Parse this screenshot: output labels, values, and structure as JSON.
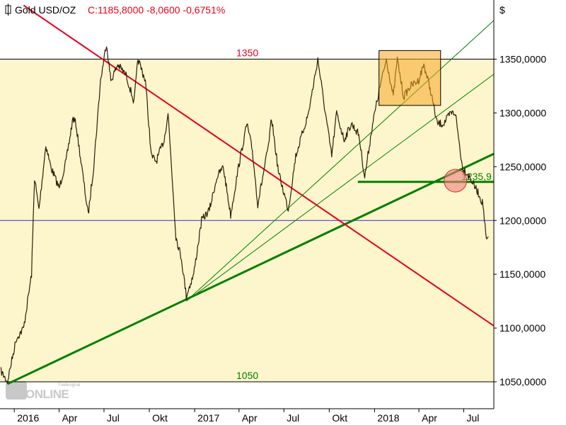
{
  "header": {
    "instrument": "Gold USD/OZ",
    "quote": "C:1185,8000 -8,0600 -0,6751%",
    "quote_color": "#e8001c"
  },
  "watermark": {
    "text": "ONLINE",
    "subtext": "Tradesignal"
  },
  "colors": {
    "background": "#ffffff",
    "band_fill": "#fdf6cc",
    "price_line": "#2b1d08",
    "support_line": "#008000",
    "resistance_line": "#e8001c",
    "horizontal_line": "#3333aa",
    "highlight_box": "#f5a623",
    "highlight_circle": "#f08080"
  },
  "chart_data": {
    "type": "line",
    "title": "Gold USD/OZ",
    "ylabel": "$",
    "y_range": [
      1025,
      1405
    ],
    "x_range": [
      "2015-12-03",
      "2018-08-31"
    ],
    "x_ticks": [
      "2016",
      "Apr",
      "Jul",
      "Okt",
      "2017",
      "Apr",
      "Jul",
      "Okt",
      "2018",
      "Apr",
      "Jul"
    ],
    "x_tick_dates": [
      "2016-01-01",
      "2016-04-01",
      "2016-07-01",
      "2016-10-01",
      "2017-01-01",
      "2017-04-01",
      "2017-07-01",
      "2017-10-01",
      "2018-01-01",
      "2018-04-01",
      "2018-07-01"
    ],
    "y_ticks": [
      1050,
      1100,
      1150,
      1200,
      1250,
      1300,
      1350
    ],
    "y_tick_labels": [
      "1050,0000",
      "1100,0000",
      "1150,0000",
      "1200,0000",
      "1250,0000",
      "1300,0000",
      "1350,0000"
    ],
    "grid": false,
    "series": [
      {
        "x": [
          "2015-12-05",
          "2015-12-18",
          "2016-01-05",
          "2016-01-20",
          "2016-02-05",
          "2016-02-11",
          "2016-02-20",
          "2016-03-05",
          "2016-03-15",
          "2016-04-01",
          "2016-04-15",
          "2016-04-29",
          "2016-05-05",
          "2016-05-30",
          "2016-06-10",
          "2016-06-24",
          "2016-07-06",
          "2016-07-15",
          "2016-07-29",
          "2016-08-15",
          "2016-08-31",
          "2016-09-08",
          "2016-09-23",
          "2016-10-05",
          "2016-10-15",
          "2016-10-31",
          "2016-11-08",
          "2016-11-24",
          "2016-12-05",
          "2016-12-15",
          "2016-12-30",
          "2017-01-15",
          "2017-01-31",
          "2017-02-15",
          "2017-02-28",
          "2017-03-15",
          "2017-03-31",
          "2017-04-17",
          "2017-04-28",
          "2017-05-09",
          "2017-05-31",
          "2017-06-06",
          "2017-06-20",
          "2017-07-10",
          "2017-07-25",
          "2017-08-07",
          "2017-08-20",
          "2017-09-08",
          "2017-09-20",
          "2017-10-06",
          "2017-10-16",
          "2017-10-31",
          "2017-11-15",
          "2017-11-30",
          "2017-12-12",
          "2017-12-28",
          "2018-01-10",
          "2018-01-25",
          "2018-02-08",
          "2018-02-16",
          "2018-03-01",
          "2018-03-15",
          "2018-03-31",
          "2018-04-11",
          "2018-04-25",
          "2018-05-08",
          "2018-05-21",
          "2018-06-05",
          "2018-06-14",
          "2018-06-28",
          "2018-07-13",
          "2018-07-31",
          "2018-08-09",
          "2018-08-16",
          "2018-08-20"
        ],
        "values": [
          1060,
          1050,
          1090,
          1100,
          1150,
          1240,
          1210,
          1270,
          1250,
          1230,
          1255,
          1295,
          1290,
          1205,
          1250,
          1330,
          1365,
          1330,
          1345,
          1335,
          1310,
          1350,
          1330,
          1260,
          1255,
          1275,
          1300,
          1185,
          1165,
          1130,
          1150,
          1200,
          1210,
          1240,
          1250,
          1205,
          1250,
          1290,
          1265,
          1215,
          1270,
          1295,
          1245,
          1210,
          1260,
          1280,
          1300,
          1350,
          1310,
          1260,
          1300,
          1275,
          1290,
          1280,
          1240,
          1290,
          1320,
          1350,
          1315,
          1350,
          1315,
          1325,
          1330,
          1345,
          1320,
          1290,
          1290,
          1300,
          1300,
          1250,
          1240,
          1225,
          1215,
          1180,
          1185
        ]
      }
    ],
    "horizontal_lines": [
      {
        "value": 1350,
        "label": "1350",
        "color": "#e8001c"
      },
      {
        "value": 1050,
        "label": "1050",
        "color": "#008000"
      },
      {
        "value": 1200,
        "label": "",
        "color": "#3333aa"
      },
      {
        "value": 1235.9,
        "label": "1235,9",
        "color": "#008000",
        "from": "2017-11-28"
      }
    ],
    "trend_lines": [
      {
        "kind": "support",
        "from": {
          "x": "2015-12-18",
          "y": 1048
        },
        "to": {
          "x": "2018-08-31",
          "y": 1262
        },
        "color": "#008000"
      },
      {
        "kind": "resistance",
        "from": {
          "x": "2016-01-20",
          "y": 1400
        },
        "to": {
          "x": "2018-08-31",
          "y": 1102
        },
        "color": "#e8001c"
      },
      {
        "kind": "fan",
        "from": {
          "x": "2016-12-15",
          "y": 1125
        },
        "to": {
          "x": "2018-08-31",
          "y": 1386
        },
        "color": "#008000"
      },
      {
        "kind": "fan",
        "from": {
          "x": "2016-12-15",
          "y": 1125
        },
        "to": {
          "x": "2018-08-31",
          "y": 1336
        },
        "color": "#008000"
      }
    ],
    "highlight_box": {
      "x_from": "2018-01-10",
      "x_to": "2018-05-15",
      "y_from": 1307,
      "y_to": 1358,
      "color": "#f5a623"
    },
    "highlight_circle": {
      "x": "2018-06-14",
      "y": 1237,
      "color": "#f08080"
    },
    "band": {
      "y_from": 1050,
      "y_to": 1350,
      "color": "#fdf6cc"
    }
  }
}
